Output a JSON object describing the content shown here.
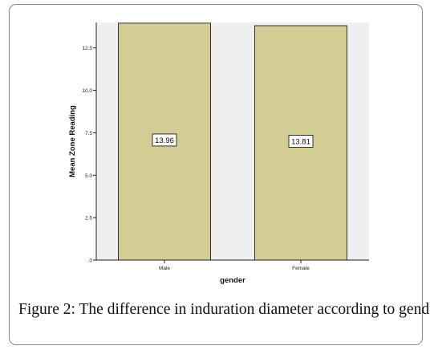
{
  "figure": {
    "caption_label": "Figure 2:",
    "caption_text": "The difference in induration diameter according to gender."
  },
  "chart_data": {
    "type": "bar",
    "categories": [
      "Male",
      "Female"
    ],
    "values": [
      13.96,
      13.81
    ],
    "data_labels": [
      "13.96",
      "13.81"
    ],
    "xlabel": "gender",
    "ylabel": "Mean Zone Reading",
    "ylim": [
      0,
      14.0
    ],
    "yticks": [
      0,
      2.5,
      5.0,
      7.5,
      10.0,
      12.5
    ],
    "ytick_labels": [
      ".0",
      "2.5",
      "5.0",
      "7.5",
      "10.0",
      "12.5"
    ],
    "grid": false,
    "legend": "none",
    "colors": {
      "bar_fill": "#d3cd94",
      "bar_stroke": "#333333",
      "plot_background": "#efefef",
      "label_box_fill": "#ffffff"
    }
  }
}
